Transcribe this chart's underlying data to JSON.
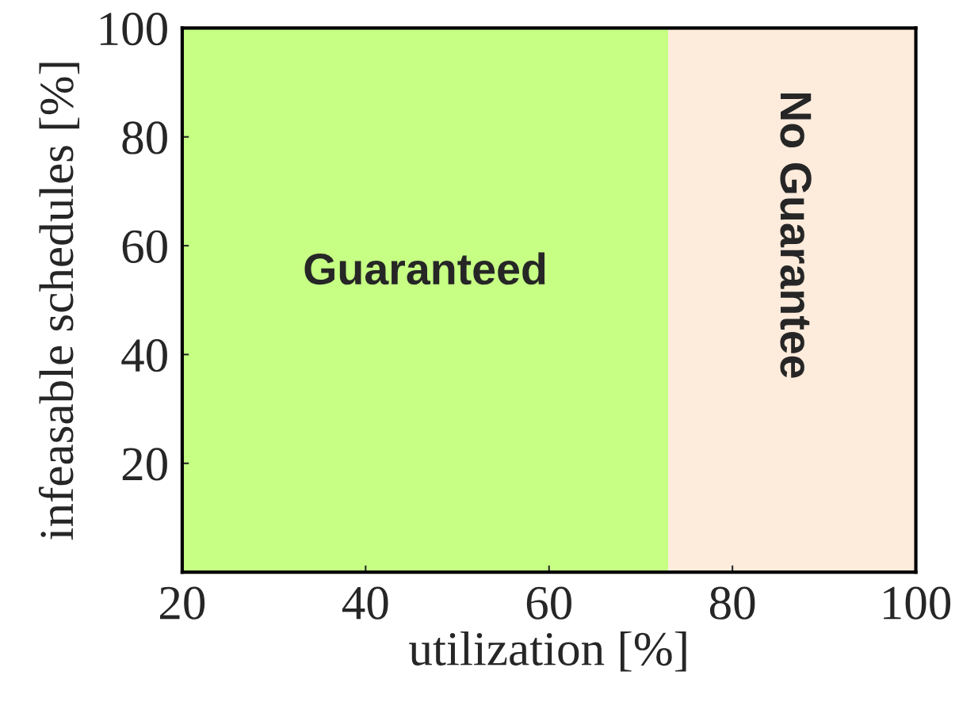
{
  "chart_data": {
    "type": "area",
    "xlabel": "utilization [%]",
    "ylabel": "infeasable schedules [%]",
    "xlim": [
      20,
      100
    ],
    "ylim": [
      0,
      100
    ],
    "xticks": [
      20,
      40,
      60,
      80,
      100
    ],
    "yticks": [
      20,
      40,
      60,
      80,
      100
    ],
    "series": [
      {
        "name": "Guaranteed",
        "color": "#c6ff84",
        "x": [
          20,
          73
        ],
        "values": [
          100,
          100
        ]
      },
      {
        "name": "No Guarantee",
        "color": "#fdebdc",
        "x": [
          73,
          100
        ],
        "values": [
          100,
          100
        ]
      }
    ]
  }
}
